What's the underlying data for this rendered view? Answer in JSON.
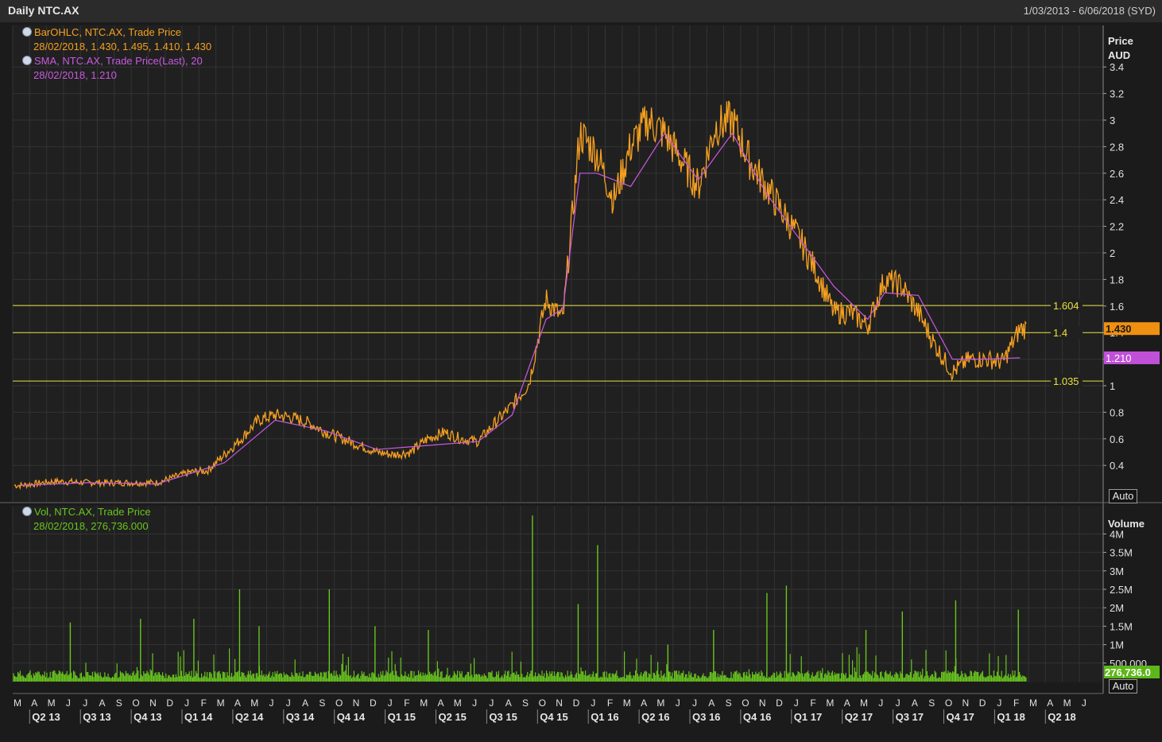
{
  "header": {
    "title": "Daily NTC.AX",
    "date_range": "1/03/2013 - 6/06/2018 (SYD)"
  },
  "legend": {
    "price_series_label": "BarOHLC, NTC.AX, Trade Price",
    "price_series_values": "28/02/2018, 1.430, 1.495, 1.410, 1.430",
    "sma_label": "SMA, NTC.AX, Trade Price(Last),  20",
    "sma_values": "28/02/2018, 1.210",
    "volume_label": "Vol, NTC.AX, Trade Price",
    "volume_values": "28/02/2018, 276,736.000"
  },
  "price_axis": {
    "title_line1": "Price",
    "title_line2": "AUD",
    "auto_label": "Auto"
  },
  "volume_axis": {
    "title": "Volume",
    "auto_label": "Auto"
  },
  "colors": {
    "price": "#f5a020",
    "sma": "#c85ae0",
    "volume": "#69c51e",
    "hline": "#e8e040",
    "grid": "#333333",
    "background": "#1b1b1b"
  },
  "chart_data": [
    {
      "type": "line",
      "series": [
        {
          "name": "BarOHLC, NTC.AX, Trade Price",
          "x": [
            "2013-03",
            "2013-05",
            "2013-07",
            "2013-09",
            "2013-11",
            "2014-01",
            "2014-02",
            "2014-03",
            "2014-04",
            "2014-05",
            "2014-06",
            "2014-07",
            "2014-08",
            "2014-09",
            "2014-10",
            "2014-11",
            "2014-12",
            "2015-01",
            "2015-02",
            "2015-03",
            "2015-04",
            "2015-05",
            "2015-06",
            "2015-07",
            "2015-08",
            "2015-09",
            "2015-10",
            "2015-11",
            "2015-12",
            "2016-01",
            "2016-02",
            "2016-03",
            "2016-04",
            "2016-05",
            "2016-06",
            "2016-07",
            "2016-08",
            "2016-09",
            "2016-10",
            "2016-11",
            "2016-12",
            "2017-01",
            "2017-02",
            "2017-03",
            "2017-04",
            "2017-05",
            "2017-06",
            "2017-07",
            "2017-08",
            "2017-09",
            "2017-10",
            "2017-11",
            "2017-12",
            "2018-01",
            "2018-02"
          ],
          "values": [
            0.25,
            0.28,
            0.27,
            0.27,
            0.27,
            0.35,
            0.36,
            0.48,
            0.6,
            0.74,
            0.78,
            0.76,
            0.72,
            0.65,
            0.6,
            0.55,
            0.5,
            0.48,
            0.5,
            0.6,
            0.65,
            0.6,
            0.58,
            0.72,
            0.85,
            1.02,
            1.65,
            1.5,
            2.9,
            2.75,
            2.4,
            2.8,
            3.0,
            2.9,
            2.7,
            2.5,
            2.95,
            3.0,
            2.7,
            2.5,
            2.3,
            2.1,
            1.85,
            1.55,
            1.55,
            1.45,
            1.8,
            1.75,
            1.55,
            1.3,
            1.1,
            1.2,
            1.2,
            1.18,
            1.43
          ]
        },
        {
          "name": "SMA, NTC.AX, Trade Price(Last),  20",
          "x": [
            "2013-03",
            "2013-07",
            "2013-11",
            "2014-03",
            "2014-06",
            "2014-09",
            "2014-12",
            "2015-03",
            "2015-06",
            "2015-08",
            "2015-10",
            "2015-11",
            "2015-12",
            "2016-01",
            "2016-03",
            "2016-05",
            "2016-07",
            "2016-09",
            "2016-11",
            "2017-01",
            "2017-03",
            "2017-05",
            "2017-06",
            "2017-08",
            "2017-10",
            "2017-12",
            "2018-02"
          ],
          "values": [
            0.25,
            0.27,
            0.26,
            0.42,
            0.74,
            0.66,
            0.52,
            0.55,
            0.58,
            0.78,
            1.5,
            1.58,
            2.6,
            2.6,
            2.5,
            2.9,
            2.55,
            2.9,
            2.45,
            2.1,
            1.75,
            1.5,
            1.7,
            1.68,
            1.2,
            1.2,
            1.21
          ]
        }
      ],
      "horizontal_lines": [
        1.604,
        1.4,
        1.035
      ],
      "last_price_label": "1.430",
      "sma_label_value": "1.210",
      "ylim": [
        0.2,
        3.7
      ],
      "yticks": [
        "3.4",
        "3.2",
        "3",
        "2.8",
        "2.6",
        "2.4",
        "2.2",
        "2",
        "1.8",
        "1.6",
        "1.4",
        "1.2",
        "1",
        "0.8",
        "0.6",
        "0.4"
      ],
      "hline_labels": [
        "1.604",
        "1.4",
        "1.035"
      ]
    },
    {
      "type": "bar",
      "series": [
        {
          "name": "Vol, NTC.AX, Trade Price",
          "x": [
            "2013-06",
            "2013-10",
            "2014-01",
            "2014-04",
            "2014-05",
            "2014-09",
            "2014-12",
            "2015-03",
            "2015-09",
            "2015-12",
            "2016-01",
            "2016-05",
            "2016-08",
            "2016-11",
            "2016-12",
            "2017-05",
            "2017-07",
            "2017-10",
            "2018-02"
          ],
          "values": [
            1600000,
            1700000,
            1700000,
            2500000,
            1500000,
            2500000,
            1500000,
            1400000,
            4500000,
            2100000,
            3700000,
            1000000,
            1400000,
            2400000,
            2600000,
            1400000,
            1900000,
            2200000,
            1950000
          ]
        }
      ],
      "last_value_label": "276,736.0",
      "yticks": [
        "4M",
        "3.5M",
        "3M",
        "2.5M",
        "2M",
        "1.5M",
        "1M",
        "500,000"
      ]
    }
  ],
  "x_axis": {
    "months": [
      "M",
      "A",
      "M",
      "J",
      "J",
      "A",
      "S",
      "O",
      "N",
      "D",
      "J",
      "F",
      "M",
      "A",
      "M",
      "J",
      "J",
      "A",
      "S",
      "O",
      "N",
      "D",
      "J",
      "F",
      "M",
      "A",
      "M",
      "J",
      "J",
      "A",
      "S",
      "O",
      "N",
      "D",
      "J",
      "F",
      "M",
      "A",
      "M",
      "J",
      "J",
      "A",
      "S",
      "O",
      "N",
      "D",
      "J",
      "F",
      "M",
      "A",
      "M",
      "J",
      "J",
      "A",
      "S",
      "O",
      "N",
      "D",
      "J",
      "F",
      "M",
      "A",
      "M",
      "J"
    ],
    "quarters": [
      "Q2 13",
      "Q3 13",
      "Q4 13",
      "Q1 14",
      "Q2 14",
      "Q3 14",
      "Q4 14",
      "Q1 15",
      "Q2 15",
      "Q3 15",
      "Q4 15",
      "Q1 16",
      "Q2 16",
      "Q3 16",
      "Q4 16",
      "Q1 17",
      "Q2 17",
      "Q3 17",
      "Q4 17",
      "Q1 18",
      "Q2 18"
    ]
  }
}
